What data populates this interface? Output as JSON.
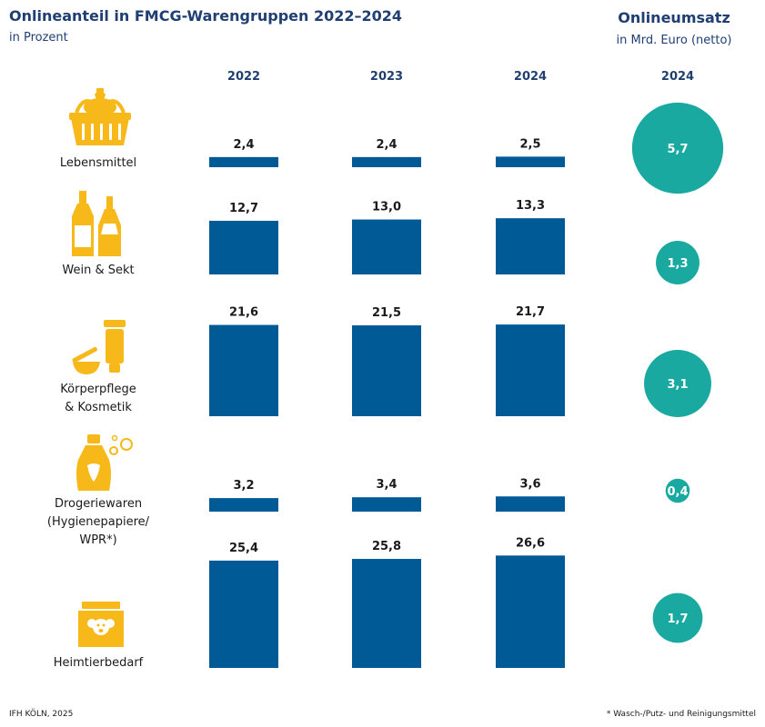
{
  "title": "Onlineanteil in FMCG-Warengruppen 2022–2024",
  "subtitle": "in Prozent",
  "right_title": "Onlineumsatz",
  "right_subtitle": "in Mrd. Euro (netto)",
  "footer_left": "IFH KÖLN, 2025",
  "footer_note": "* Wasch-/Putz- und Reinigungsmittel",
  "colors": {
    "bar": "#005a96",
    "bubble": "#1aa9a1",
    "icon": "#f7b819",
    "title": "#1f3f73"
  },
  "categories": [
    {
      "lines": [
        "Lebensmittel"
      ],
      "icon": "basket-icon"
    },
    {
      "lines": [
        "Wein & Sekt"
      ],
      "icon": "bottles-icon"
    },
    {
      "lines": [
        "Körperpflege",
        "& Kosmetik"
      ],
      "icon": "cosmetics-icon"
    },
    {
      "lines": [
        "Drogeriewaren",
        "(Hygienepapiere/",
        "WPR*)"
      ],
      "icon": "detergent-bottle-icon"
    },
    {
      "lines": [
        "Heimtierbedarf"
      ],
      "icon": "pet-food-bag-icon"
    }
  ],
  "chart_data": {
    "type": "bar",
    "title": "Onlineanteil in FMCG-Warengruppen 2022–2024",
    "unit": "in Prozent",
    "years": [
      "2022",
      "2023",
      "2024"
    ],
    "categories": [
      "Lebensmittel",
      "Wein & Sekt",
      "Körperpflege & Kosmetik",
      "Drogeriewaren (Hygienepapiere/WPR*)",
      "Heimtierbedarf"
    ],
    "series": [
      {
        "name": "2022",
        "values": [
          2.4,
          12.7,
          21.6,
          3.2,
          25.4
        ],
        "labels": [
          "2,4",
          "12,7",
          "21,6",
          "3,2",
          "25,4"
        ]
      },
      {
        "name": "2023",
        "values": [
          2.4,
          13.0,
          21.5,
          3.4,
          25.8
        ],
        "labels": [
          "2,4",
          "13,0",
          "21,5",
          "3,4",
          "25,8"
        ]
      },
      {
        "name": "2024",
        "values": [
          2.5,
          13.3,
          21.7,
          3.6,
          26.6
        ],
        "labels": [
          "2,5",
          "13,3",
          "21,7",
          "3,6",
          "26,6"
        ]
      }
    ],
    "online_revenue": {
      "title": "Onlineumsatz",
      "unit": "in Mrd. Euro (netto)",
      "year": "2024",
      "values": [
        5.7,
        1.3,
        3.1,
        0.4,
        1.7
      ],
      "labels": [
        "5,7",
        "1,3",
        "3,1",
        "0,4",
        "1,7"
      ]
    }
  }
}
